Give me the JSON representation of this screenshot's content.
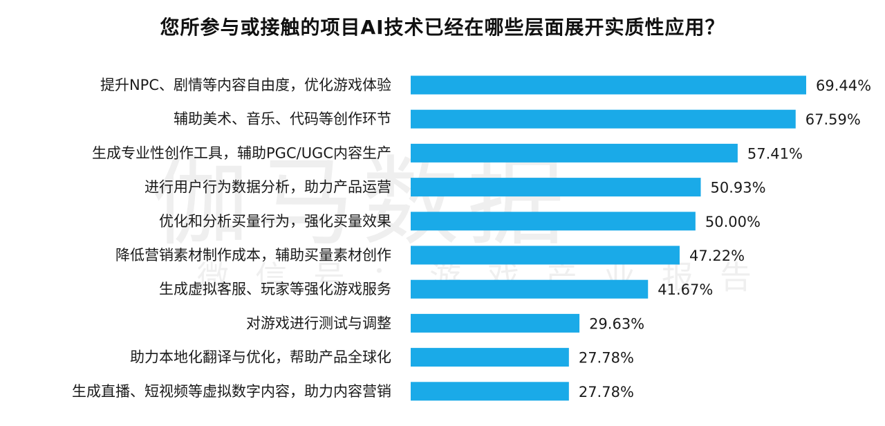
{
  "chart_data": {
    "type": "bar",
    "orientation": "horizontal",
    "title": "您所参与或接触的项目AI技术已经在哪些层面展开实质性应用？",
    "categories": [
      "提升NPC、剧情等内容自由度，优化游戏体验",
      "辅助美术、音乐、代码等创作环节",
      "生成专业性创作工具，辅助PGC/UGC内容生产",
      "进行用户行为数据分析，助力产品运营",
      "优化和分析买量行为，强化买量效果",
      "降低营销素材制作成本，辅助买量素材创作",
      "生成虚拟客服、玩家等强化游戏服务",
      "对游戏进行测试与调整",
      "助力本地化翻译与优化，帮助产品全球化",
      "生成直播、短视频等虚拟数字内容，助力内容营销"
    ],
    "values": [
      69.44,
      67.59,
      57.41,
      50.93,
      50.0,
      47.22,
      41.67,
      29.63,
      27.78,
      27.78
    ],
    "value_labels": [
      "69.44%",
      "67.59%",
      "57.41%",
      "50.93%",
      "50.00%",
      "47.22%",
      "41.67%",
      "29.63%",
      "27.78%",
      "27.78%"
    ],
    "bar_color": "#1aaae8",
    "xlim": [
      0,
      69.44
    ],
    "grid": false,
    "legend": "none"
  },
  "watermark": {
    "main": "伽马数据",
    "sub": "微信号：游戏产业报告"
  }
}
